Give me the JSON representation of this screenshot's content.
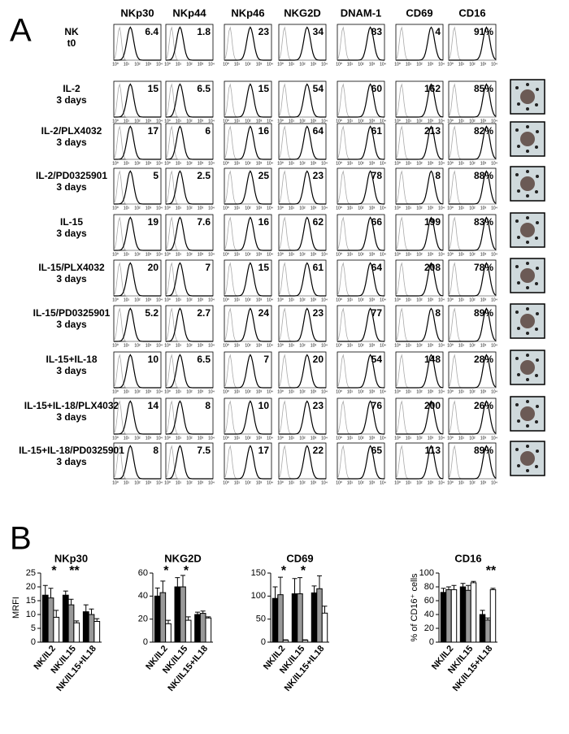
{
  "panel_a": {
    "letter": "A",
    "columns": [
      "NKp30",
      "NKp44",
      "NKp46",
      "NKG2D",
      "DNAM-1",
      "CD69",
      "CD16"
    ],
    "axis_ticks": [
      "10⁰",
      "10¹",
      "10²",
      "10³",
      "10⁴"
    ],
    "rows": [
      {
        "label": [
          "NK",
          "t0"
        ],
        "values": [
          "6.4",
          "1.8",
          "23",
          "34",
          "83",
          "4",
          "91%"
        ]
      },
      {
        "label": [
          "IL-2",
          "3 days"
        ],
        "values": [
          "15",
          "6.5",
          "15",
          "54",
          "60",
          "162",
          "85%"
        ]
      },
      {
        "label": [
          "IL-2/PLX4032",
          "3 days"
        ],
        "values": [
          "17",
          "6",
          "16",
          "64",
          "61",
          "213",
          "82%"
        ]
      },
      {
        "label": [
          "IL-2/PD0325901",
          "3 days"
        ],
        "values": [
          "5",
          "2.5",
          "25",
          "23",
          "78",
          "8",
          "88%"
        ]
      },
      {
        "label": [
          "IL-15",
          "3 days"
        ],
        "values": [
          "19",
          "7.6",
          "16",
          "62",
          "66",
          "199",
          "83%"
        ]
      },
      {
        "label": [
          "IL-15/PLX4032",
          "3 days"
        ],
        "values": [
          "20",
          "7",
          "15",
          "61",
          "64",
          "208",
          "78%"
        ]
      },
      {
        "label": [
          "IL-15/PD0325901",
          "3 days"
        ],
        "values": [
          "5.2",
          "2.7",
          "24",
          "23",
          "77",
          "8",
          "89%"
        ]
      },
      {
        "label": [
          "IL-15+IL-18",
          "3 days"
        ],
        "values": [
          "10",
          "6.5",
          "7",
          "20",
          "54",
          "148",
          "28%"
        ]
      },
      {
        "label": [
          "IL-15+IL-18/PLX4032",
          "3 days"
        ],
        "values": [
          "14",
          "8",
          "10",
          "23",
          "76",
          "200",
          "26%"
        ]
      },
      {
        "label": [
          "IL-15+IL-18/PD0325901",
          "3 days"
        ],
        "values": [
          "8",
          "7.5",
          "17",
          "22",
          "65",
          "113",
          "89%"
        ]
      }
    ]
  },
  "panel_b_letter": "B",
  "chart_data": [
    {
      "type": "bar",
      "title": "NKp30",
      "y_label": "MRFI",
      "categories": [
        "NK/IL2",
        "NK/IL15",
        "NK/IL15+IL18"
      ],
      "series": [
        {
          "color": "#000000",
          "values": [
            17,
            17,
            11
          ],
          "errors": [
            3.5,
            1.5,
            2.5
          ]
        },
        {
          "color": "#999999",
          "values": [
            16,
            13.5,
            10
          ],
          "errors": [
            3.5,
            2,
            2
          ]
        },
        {
          "color": "#ffffff",
          "values": [
            9,
            7,
            7.5
          ],
          "errors": [
            2.5,
            0.7,
            1
          ]
        }
      ],
      "ylim": [
        0,
        25
      ],
      "yticks": [
        0,
        5,
        10,
        15,
        20,
        25
      ],
      "annotations": [
        {
          "text": "*",
          "x": "NK/IL2"
        },
        {
          "text": "**",
          "x": "NK/IL15"
        }
      ]
    },
    {
      "type": "bar",
      "title": "NKG2D",
      "categories": [
        "NK/IL2",
        "NK/IL15",
        "NK/IL15+IL18"
      ],
      "series": [
        {
          "color": "#000000",
          "values": [
            40,
            48,
            24
          ],
          "errors": [
            7,
            8,
            2
          ]
        },
        {
          "color": "#999999",
          "values": [
            43,
            48,
            25
          ],
          "errors": [
            10,
            10,
            2
          ]
        },
        {
          "color": "#ffffff",
          "values": [
            16,
            19,
            21
          ],
          "errors": [
            3,
            3,
            1
          ]
        }
      ],
      "ylim": [
        0,
        60
      ],
      "yticks": [
        0,
        20,
        40,
        60
      ],
      "annotations": [
        {
          "text": "*",
          "x": "NK/IL2"
        },
        {
          "text": "*",
          "x": "NK/IL15"
        }
      ]
    },
    {
      "type": "bar",
      "title": "CD69",
      "categories": [
        "NK/IL2",
        "NK/IL15",
        "NK/IL15+IL18"
      ],
      "series": [
        {
          "color": "#000000",
          "values": [
            95,
            105,
            107
          ],
          "errors": [
            25,
            33,
            15
          ]
        },
        {
          "color": "#999999",
          "values": [
            103,
            105,
            116
          ],
          "errors": [
            38,
            35,
            28
          ]
        },
        {
          "color": "#ffffff",
          "values": [
            4,
            4,
            63
          ],
          "errors": [
            1,
            1,
            15
          ]
        }
      ],
      "ylim": [
        0,
        150
      ],
      "yticks": [
        0,
        50,
        100,
        150
      ],
      "annotations": [
        {
          "text": "*",
          "x": "NK/IL2"
        },
        {
          "text": "*",
          "x": "NK/IL15"
        }
      ]
    },
    {
      "type": "bar",
      "title": "CD16",
      "y_label": "% of CD16⁺ cells",
      "categories": [
        "NK/IL2",
        "NK/IL15",
        "NK/IL15+IL18"
      ],
      "series": [
        {
          "color": "#000000",
          "values": [
            72,
            80,
            40
          ],
          "errors": [
            6,
            5,
            6
          ]
        },
        {
          "color": "#999999",
          "values": [
            76,
            75,
            32
          ],
          "errors": [
            4,
            7,
            3
          ]
        },
        {
          "color": "#ffffff",
          "values": [
            76,
            86,
            76
          ],
          "errors": [
            6,
            2,
            2
          ]
        }
      ],
      "ylim": [
        0,
        100
      ],
      "yticks": [
        0,
        20,
        40,
        60,
        80,
        100
      ],
      "annotations": [
        {
          "text": "**",
          "x": "NK/IL15+IL18"
        }
      ]
    }
  ]
}
